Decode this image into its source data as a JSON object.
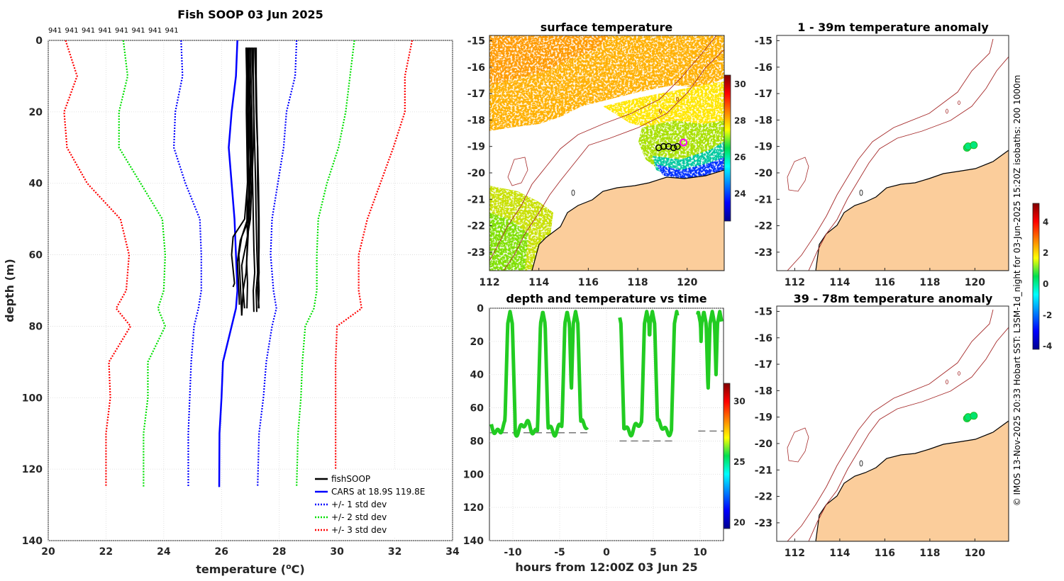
{
  "figure": {
    "title": "Fish SOOP 03 Jun 2025",
    "credit": "© IMOS 13-Nov-2025 20:33 Hobart SST: L3SM-1d_night for 03-Jun-2025 15:20Z isobaths: 200  1000m",
    "colors": {
      "land": "#fbcd9b",
      "coast": "#000000",
      "isobath": "#a52a2a"
    }
  },
  "chart_data": [
    {
      "id": "profile",
      "type": "line",
      "title": "Fish SOOP 03 Jun 2025",
      "xlabel": "temperature (°C)",
      "xlabel_parts": {
        "base": "temperature (",
        "sup": "o",
        "unit": "C)"
      },
      "ylabel": "depth (m)",
      "xlim": [
        20,
        34
      ],
      "ylim": [
        0,
        140
      ],
      "y_reversed": true,
      "xticks": [
        20,
        22,
        24,
        26,
        28,
        30,
        32,
        34
      ],
      "yticks": [
        0,
        20,
        40,
        60,
        80,
        100,
        120,
        140
      ],
      "grid": true,
      "top_labels": [
        "941",
        "941",
        "941",
        "941",
        "941",
        "941",
        "941",
        "941"
      ],
      "cars_depth": [
        0,
        10,
        20,
        30,
        40,
        50,
        60,
        70,
        75,
        80,
        90,
        100,
        110,
        125
      ],
      "series": [
        {
          "name": "fishSOOP",
          "color": "#000000",
          "style": "solid",
          "profiles": [
            {
              "t": [
                26.85,
                26.87,
                26.86,
                26.88,
                26.9,
                26.88,
                26.9,
                26.87,
                26.9,
                26.88
              ],
              "d": [
                2,
                10,
                20,
                30,
                40,
                50,
                55,
                62,
                68,
                75
              ]
            },
            {
              "t": [
                26.95,
                26.97,
                27.0,
                27.05,
                27.08,
                27.1,
                27.12,
                27.15,
                27.1,
                27.12
              ],
              "d": [
                2,
                10,
                20,
                30,
                40,
                50,
                58,
                65,
                70,
                76
              ]
            },
            {
              "t": [
                27.05,
                27.08,
                27.12,
                27.15,
                27.18,
                27.2,
                27.22,
                27.25,
                27.2,
                27.22
              ],
              "d": [
                2,
                10,
                20,
                30,
                40,
                50,
                58,
                65,
                70,
                76
              ]
            },
            {
              "t": [
                27.15,
                27.18,
                27.2,
                27.25,
                27.28,
                27.3,
                27.3,
                27.28,
                27.3,
                27.28
              ],
              "d": [
                2,
                10,
                20,
                30,
                40,
                50,
                58,
                65,
                70,
                75
              ]
            },
            {
              "t": [
                26.95,
                26.95,
                27.0,
                27.0,
                26.98,
                26.9,
                26.7,
                26.6,
                26.65,
                26.7
              ],
              "d": [
                2,
                10,
                20,
                30,
                40,
                50,
                55,
                60,
                68,
                77
              ]
            },
            {
              "t": [
                26.9,
                26.92,
                26.95,
                26.95,
                26.9,
                26.8,
                26.4,
                26.35,
                26.45,
                26.4
              ],
              "d": [
                2,
                10,
                20,
                30,
                40,
                50,
                55,
                60,
                68,
                69
              ]
            },
            {
              "t": [
                27.0,
                27.02,
                27.05,
                27.05,
                27.0,
                26.95,
                26.65,
                26.55,
                26.6,
                26.62
              ],
              "d": [
                2,
                10,
                20,
                30,
                40,
                50,
                56,
                62,
                70,
                74
              ]
            },
            {
              "t": [
                27.1,
                27.1,
                27.12,
                27.1,
                27.05,
                27.0,
                26.85,
                26.7,
                26.75,
                26.7
              ],
              "d": [
                2,
                10,
                20,
                30,
                40,
                50,
                57,
                63,
                70,
                77
              ]
            },
            {
              "t": [
                26.88,
                26.9,
                26.9,
                26.92,
                26.95,
                26.95,
                26.9,
                26.85,
                26.75,
                26.8
              ],
              "d": [
                2,
                10,
                20,
                30,
                40,
                50,
                58,
                65,
                70,
                75
              ]
            },
            {
              "t": [
                27.2,
                27.2,
                27.22,
                27.25,
                27.25,
                27.28,
                27.28,
                27.3,
                27.25,
                27.3
              ],
              "d": [
                2,
                10,
                20,
                30,
                40,
                50,
                58,
                65,
                70,
                75
              ]
            }
          ]
        },
        {
          "name": "CARS at 18.9S 119.8E",
          "color": "#0000ff",
          "style": "solid",
          "t": [
            26.55,
            26.5,
            26.35,
            26.25,
            26.35,
            26.45,
            26.5,
            26.55,
            26.5,
            26.35,
            26.05,
            26.0,
            25.93,
            25.92
          ]
        },
        {
          "name": "+/- 1 std dev",
          "color": "#0000ff",
          "style": "dotted",
          "t_lo": [
            24.6,
            24.65,
            24.4,
            24.35,
            24.75,
            25.25,
            25.3,
            25.3,
            25.2,
            25.05,
            24.95,
            24.9,
            24.85,
            24.85
          ],
          "t_hi": [
            28.6,
            28.55,
            28.25,
            28.15,
            27.95,
            27.75,
            27.7,
            27.8,
            27.9,
            27.75,
            27.55,
            27.45,
            27.3,
            27.25
          ]
        },
        {
          "name": "+/- 2 std dev",
          "color": "#00e000",
          "style": "dotted",
          "t_lo": [
            22.6,
            22.75,
            22.45,
            22.45,
            23.2,
            23.95,
            24.05,
            24.0,
            23.8,
            24.05,
            23.45,
            23.45,
            23.3,
            23.3
          ],
          "t_hi": [
            30.6,
            30.45,
            30.3,
            30.05,
            29.65,
            29.35,
            29.3,
            29.3,
            29.2,
            28.9,
            28.8,
            28.75,
            28.65,
            28.6
          ]
        },
        {
          "name": "+/- 3 std dev",
          "color": "#ff0000",
          "style": "dotted",
          "t_lo": [
            20.6,
            21.0,
            20.55,
            20.65,
            21.35,
            22.5,
            22.8,
            22.7,
            22.35,
            22.85,
            22.1,
            22.15,
            22.0,
            22.0
          ],
          "t_hi": [
            32.6,
            32.35,
            32.35,
            31.95,
            31.5,
            31.05,
            30.75,
            30.75,
            30.85,
            30.0,
            29.95,
            29.95,
            29.95,
            29.95
          ]
        }
      ]
    },
    {
      "id": "sst_map",
      "type": "heatmap",
      "title": "surface temperature",
      "xlim": [
        112,
        121.5
      ],
      "ylim": [
        -23.7,
        -14.8
      ],
      "xticks": [
        112,
        114,
        116,
        118,
        120
      ],
      "yticks": [
        -15,
        -16,
        -17,
        -18,
        -19,
        -20,
        -21,
        -22,
        -23
      ],
      "colorbar": {
        "min": 22.5,
        "max": 30.5,
        "ticks": [
          30,
          28,
          26,
          24
        ]
      },
      "vessel_track": [
        [
          118.85,
          -19.05
        ],
        [
          119.05,
          -19.0
        ],
        [
          119.25,
          -19.0
        ],
        [
          119.45,
          -19.05
        ],
        [
          119.6,
          -19.0
        ]
      ],
      "vessel_position": [
        119.85,
        -18.85
      ],
      "isobath_labels": [
        "200",
        "1000"
      ]
    },
    {
      "id": "depth_time",
      "type": "scatter",
      "title": "depth and temperature vs time",
      "xlabel": "hours from 12:00Z 03 Jun 25",
      "ylabel": "",
      "xlim": [
        -12.5,
        12.5
      ],
      "ylim": [
        0,
        140
      ],
      "y_reversed": true,
      "xticks": [
        -10,
        -5,
        0,
        5,
        10
      ],
      "yticks": [
        0,
        20,
        40,
        60,
        80,
        100,
        120,
        140
      ],
      "colorbar": {
        "min": 19.5,
        "max": 31.5,
        "ticks": [
          30,
          25,
          20
        ]
      },
      "dives": [
        -10.3,
        -6.8,
        -4.2,
        -3.3,
        1.3,
        4.3,
        4.9,
        7.5,
        9.8,
        10.4,
        11.3,
        12.1
      ],
      "bottom_segments": [
        {
          "x0": -12.5,
          "x1": -2.0,
          "depth": 75
        },
        {
          "x0": 1.4,
          "x1": 7.2,
          "depth": 80
        },
        {
          "x0": 9.8,
          "x1": 12.5,
          "depth": 74
        }
      ]
    },
    {
      "id": "anom_shallow",
      "type": "heatmap",
      "title": "1 - 39m temperature anomaly",
      "xlim": [
        111.2,
        121.5
      ],
      "ylim": [
        -23.7,
        -14.8
      ],
      "xticks": [
        112,
        114,
        116,
        118,
        120
      ],
      "yticks": [
        -15,
        -16,
        -17,
        -18,
        -19,
        -20,
        -21,
        -22,
        -23
      ],
      "obs": [
        [
          119.65,
          -19.05
        ],
        [
          119.7,
          -19.0
        ],
        [
          119.95,
          -18.95
        ]
      ],
      "obs_anomaly": 0.2
    },
    {
      "id": "anom_deep",
      "type": "heatmap",
      "title": "39 - 78m temperature anomaly",
      "xlim": [
        111.2,
        121.5
      ],
      "ylim": [
        -23.7,
        -14.8
      ],
      "xticks": [
        112,
        114,
        116,
        118,
        120
      ],
      "yticks": [
        -15,
        -16,
        -17,
        -18,
        -19,
        -20,
        -21,
        -22,
        -23
      ],
      "obs": [
        [
          119.65,
          -19.05
        ],
        [
          119.7,
          -19.0
        ],
        [
          119.95,
          -18.95
        ]
      ],
      "obs_anomaly": 0.3,
      "colorbar": {
        "min": -4.2,
        "max": 5.2,
        "ticks": [
          4,
          2,
          0,
          -2,
          -4
        ]
      }
    }
  ]
}
